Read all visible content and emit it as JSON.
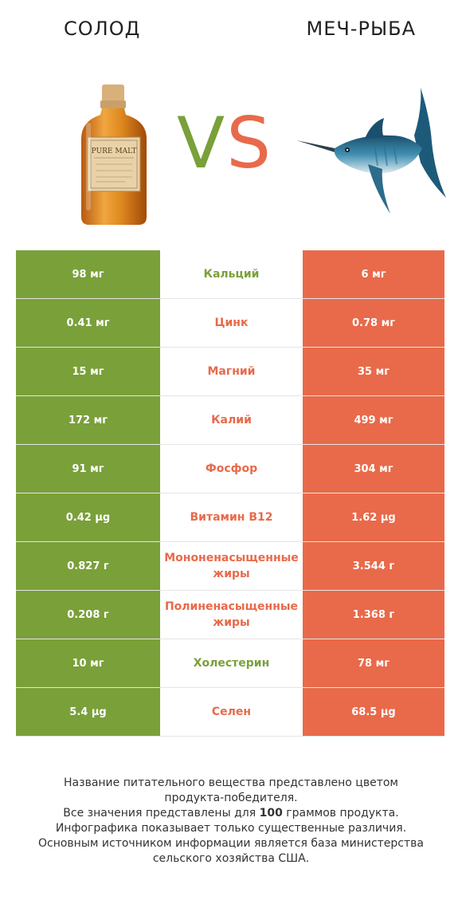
{
  "header": {
    "left_title": "СОЛОД",
    "right_title": "МЕЧ-РЫБА",
    "vs_v": "V",
    "vs_s": "S"
  },
  "colors": {
    "winner_left": "#7aa03a",
    "winner_right": "#e86a4a"
  },
  "images": {
    "left_icon": "whisky-bottle-icon",
    "left_label_text": "PURE MALT",
    "right_icon": "swordfish-icon"
  },
  "rows": [
    {
      "left": "98 мг",
      "name": "Кальций",
      "right": "6 мг",
      "winner": "left"
    },
    {
      "left": "0.41 мг",
      "name": "Цинк",
      "right": "0.78 мг",
      "winner": "right"
    },
    {
      "left": "15 мг",
      "name": "Магний",
      "right": "35 мг",
      "winner": "right"
    },
    {
      "left": "172 мг",
      "name": "Калий",
      "right": "499 мг",
      "winner": "right"
    },
    {
      "left": "91 мг",
      "name": "Фосфор",
      "right": "304 мг",
      "winner": "right"
    },
    {
      "left": "0.42 µg",
      "name": "Витамин B12",
      "right": "1.62 µg",
      "winner": "right"
    },
    {
      "left": "0.827 г",
      "name": "Мононенасыщенные жиры",
      "right": "3.544 г",
      "winner": "right"
    },
    {
      "left": "0.208 г",
      "name": "Полиненасыщенные жиры",
      "right": "1.368 г",
      "winner": "right"
    },
    {
      "left": "10 мг",
      "name": "Холестерин",
      "right": "78 мг",
      "winner": "left"
    },
    {
      "left": "5.4 µg",
      "name": "Селен",
      "right": "68.5 µg",
      "winner": "right"
    }
  ],
  "footer": {
    "line1": "Название питательного вещества представлено цветом",
    "line2": "продукта-победителя.",
    "line3_pre": "Все значения представлены для ",
    "line3_bold": "100",
    "line3_post": " граммов продукта.",
    "line4": "Инфографика показывает только существенные различия.",
    "line5": "Основным источником информации является база министерства",
    "line6": "сельского хозяйства США."
  }
}
